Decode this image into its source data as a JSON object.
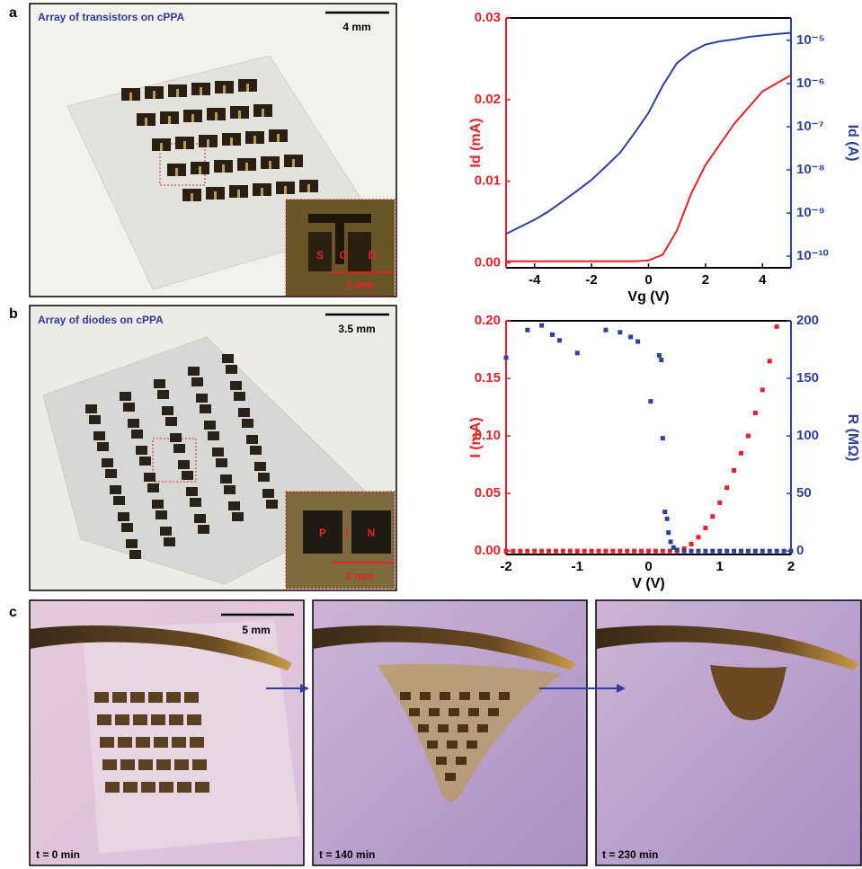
{
  "panel_letters": [
    "a",
    "b",
    "c"
  ],
  "photos": [
    {
      "title": "Array of transistors on cPPA",
      "scale": "4 mm",
      "inset": [
        "S",
        "G",
        "D"
      ],
      "inset_scale": "1 mm"
    },
    {
      "title": "Array of diodes on cPPA",
      "scale": "3.5 mm",
      "inset": [
        "P",
        "I",
        "N"
      ],
      "inset_scale": "1 mm"
    }
  ],
  "degradation": {
    "scale": "5 mm",
    "times": [
      "t = 0 min",
      "t = 140 min",
      "t = 230 min"
    ]
  },
  "chart_data": [
    {
      "type": "line",
      "xlabel": "Vg (V)",
      "ylabel": "Id (mA)",
      "y2label": "Id (A)",
      "x": [
        -5,
        -4.5,
        -4,
        -3.5,
        -3,
        -2.5,
        -2,
        -1.5,
        -1,
        -0.5,
        0,
        0.5,
        1,
        1.5,
        2,
        2.5,
        3,
        3.5,
        4,
        4.5,
        5
      ],
      "series": [
        {
          "color": "#e8202a",
          "values": [
            0.0002,
            0.0002,
            0.0002,
            0.0002,
            0.0002,
            0.0002,
            0.0002,
            0.0002,
            0.0002,
            0.0002,
            0.0003,
            0.001,
            0.004,
            0.0085,
            0.012,
            0.0145,
            0.017,
            0.019,
            0.021,
            0.022,
            0.023
          ]
        },
        {
          "color": "#2e3f9e",
          "axis": "y2",
          "values": [
            3.3e-10,
            4.8e-10,
            7e-10,
            1.1e-09,
            1.9e-09,
            3.3e-09,
            5.9e-09,
            1.2e-08,
            2.5e-08,
            7e-08,
            2.1e-07,
            9e-07,
            3e-06,
            5.4e-06,
            8e-06,
            9.5e-06,
            1.05e-05,
            1.2e-05,
            1.3e-05,
            1.4e-05,
            1.5e-05
          ]
        }
      ],
      "xlim": [
        -5,
        5
      ],
      "xticks": [
        -4,
        -2,
        0,
        2,
        4
      ],
      "ylim": [
        -0.0006,
        0.03
      ],
      "yticks": [
        {
          "value": 0,
          "label": "0.00"
        },
        0.01,
        0.02,
        0.03
      ],
      "y2lim": [
        5.4e-11,
        3.3e-05
      ],
      "y2log": true,
      "y2ticks": [
        {
          "value": 1e-10,
          "label": "10⁻¹⁰"
        },
        {
          "value": 1e-09,
          "label": "10⁻⁹"
        },
        {
          "value": 1e-08,
          "label": "10⁻⁸"
        },
        {
          "value": 1e-07,
          "label": "10⁻⁷"
        },
        {
          "value": 1e-06,
          "label": "10⁻⁶"
        },
        {
          "value": 1e-05,
          "label": "10⁻⁵"
        }
      ]
    },
    {
      "type": "scatter",
      "xlabel": "V (V)",
      "ylabel": "I (mA)",
      "y2label": "R (MΩ)",
      "series": [
        {
          "color": "#e8202a",
          "x": [
            -2,
            -1.9,
            -1.8,
            -1.7,
            -1.6,
            -1.5,
            -1.4,
            -1.3,
            -1.2,
            -1.1,
            -1,
            -0.9,
            -0.8,
            -0.7,
            -0.6,
            -0.5,
            -0.4,
            -0.3,
            -0.2,
            -0.1,
            0,
            0.1,
            0.2,
            0.3,
            0.4,
            0.5,
            0.6,
            0.7,
            0.8,
            0.9,
            1,
            1.1,
            1.2,
            1.3,
            1.4,
            1.5,
            1.6,
            1.7,
            1.8
          ],
          "values": [
            0,
            0,
            0,
            0,
            0,
            0,
            0,
            0,
            0,
            0,
            0,
            0,
            0,
            0,
            0,
            0,
            0,
            0,
            0,
            0,
            0,
            0,
            0,
            0,
            0,
            0.002,
            0.006,
            0.012,
            0.02,
            0.03,
            0.042,
            0.055,
            0.07,
            0.085,
            0.1,
            0.12,
            0.14,
            0.165,
            0.195
          ]
        },
        {
          "color": "#2e3f9e",
          "axis": "y2",
          "x": [
            -2,
            -1.7,
            -1.5,
            -1.35,
            -1.25,
            -1,
            -0.6,
            -0.4,
            -0.25,
            -0.15,
            0.03,
            0.15,
            0.18,
            0.2,
            0.23,
            0.26,
            0.28,
            0.31,
            0.35,
            0.4,
            0.5,
            0.6,
            0.7,
            0.8,
            0.9,
            1,
            1.1,
            1.2,
            1.3,
            1.4,
            1.5,
            1.6,
            1.7,
            1.8,
            1.9,
            2
          ],
          "values": [
            168,
            192,
            196,
            188,
            183,
            172,
            192,
            190,
            186,
            182,
            130,
            170,
            166,
            98,
            34,
            28,
            16,
            8,
            3,
            1,
            0,
            0,
            0,
            0,
            0,
            0,
            0,
            0,
            0,
            0,
            0,
            0,
            0,
            0,
            0,
            0
          ]
        }
      ],
      "xlim": [
        -2,
        2
      ],
      "xticks": [
        -2,
        -1,
        0,
        1,
        2
      ],
      "ylim": [
        -0.003,
        0.2
      ],
      "yticks": [
        {
          "value": 0,
          "label": "0.00"
        },
        0.05,
        {
          "value": 0.1,
          "label": "0.10"
        },
        0.15,
        {
          "value": 0.2,
          "label": "0.20"
        }
      ],
      "y2lim": [
        -3,
        200
      ],
      "y2ticks": [
        0,
        50,
        100,
        150,
        200
      ]
    }
  ]
}
